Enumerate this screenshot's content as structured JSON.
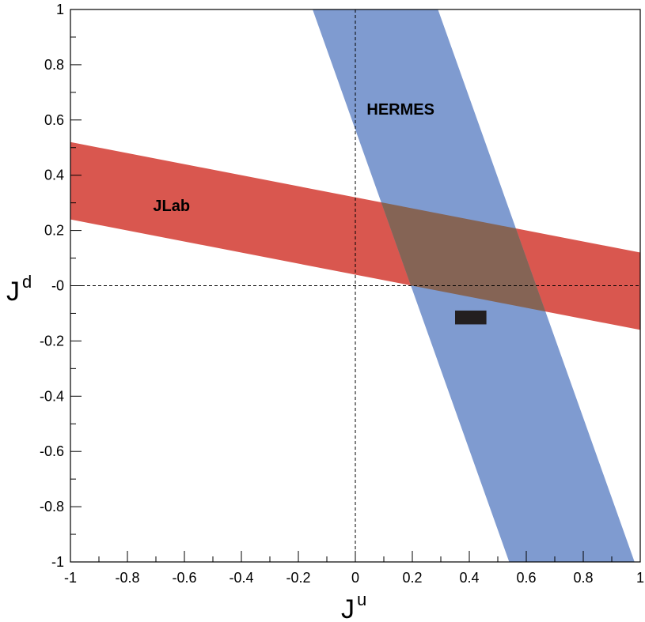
{
  "chart_data": {
    "type": "area",
    "xlabel": "J",
    "xlabel_superscript": "u",
    "ylabel": "J",
    "ylabel_superscript": "d",
    "xlim": [
      -1,
      1
    ],
    "ylim": [
      -1,
      1
    ],
    "x_ticks": [
      -1,
      -0.8,
      -0.6,
      -0.4,
      -0.2,
      0,
      0.2,
      0.4,
      0.6,
      0.8,
      1
    ],
    "x_tick_labels": [
      "-1",
      "-0.8",
      "-0.6",
      "-0.4",
      "-0.2",
      "0",
      "0.2",
      "0.4",
      "0.6",
      "0.8",
      "1"
    ],
    "y_ticks": [
      -1,
      -0.8,
      -0.6,
      -0.4,
      -0.2,
      0,
      0.2,
      0.4,
      0.6,
      0.8,
      1
    ],
    "y_tick_labels": [
      "-1",
      "-0.8",
      "-0.6",
      "-0.4",
      "-0.2",
      "-0",
      "0.2",
      "0.4",
      "0.6",
      "0.8",
      "1"
    ],
    "reference_lines": [
      {
        "axis": "x",
        "value": 0,
        "style": "dashed"
      },
      {
        "axis": "y",
        "value": 0,
        "style": "dashed"
      }
    ],
    "bands": [
      {
        "label": "JLab",
        "color": "#d9574f",
        "polygon": [
          [
            -1,
            0.52
          ],
          [
            1,
            0.12
          ],
          [
            1,
            -0.16
          ],
          [
            -1,
            0.24
          ]
        ],
        "label_position": [
          -0.71,
          0.27
        ]
      },
      {
        "label": "HERMES",
        "color": "#7f9bd0",
        "polygon": [
          [
            -0.15,
            1
          ],
          [
            0.29,
            1
          ],
          [
            0.98,
            -1
          ],
          [
            0.54,
            -1
          ]
        ],
        "label_position": [
          0.04,
          0.62
        ]
      }
    ],
    "overlap_color": "#856455",
    "markers": [
      {
        "type": "rect",
        "color": "#231f20",
        "x_range": [
          0.35,
          0.46
        ],
        "y_range": [
          -0.14,
          -0.09
        ]
      }
    ]
  }
}
